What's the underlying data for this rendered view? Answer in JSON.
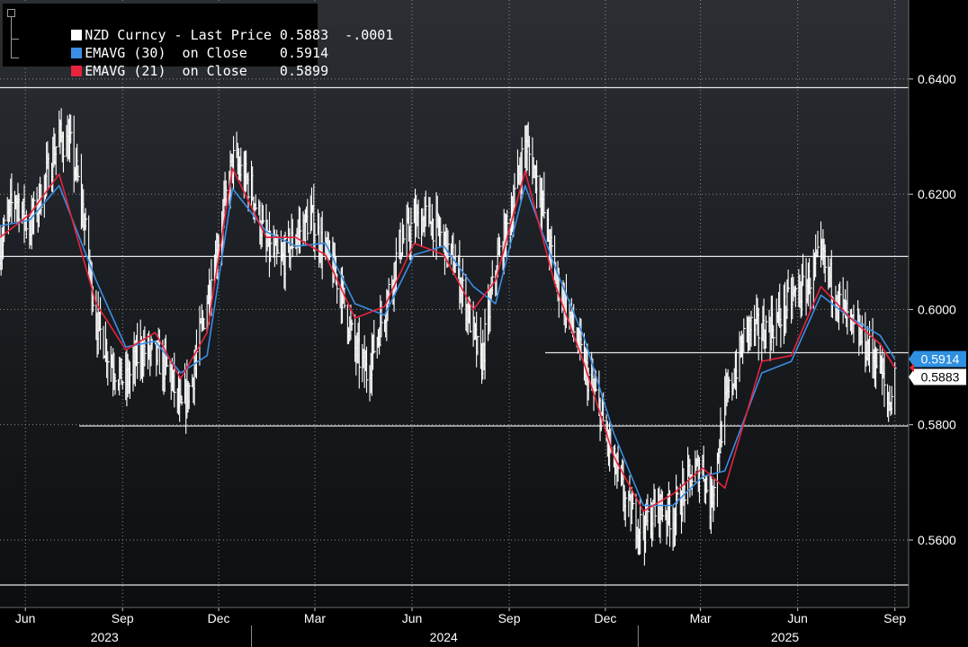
{
  "legend": {
    "items": [
      {
        "label": "NZD Curncy - Last Price 0.5883  -.0001",
        "color": "#ffffff"
      },
      {
        "label": "EMAVG (30)  on Close    0.5914",
        "color": "#3a8ee6"
      },
      {
        "label": "EMAVG (21)  on Close    0.5899",
        "color": "#e8233c"
      }
    ]
  },
  "price_labels": {
    "ema30": {
      "text": "0.5914",
      "value": 0.5914,
      "bg": "#2f8fe0",
      "fg": "#ffffff"
    },
    "last": {
      "text": "0.5883",
      "value": 0.5883,
      "bg": "#ffffff",
      "fg": "#000000"
    },
    "ema21_marker_color": "#e8233c"
  },
  "colors": {
    "price": "#ffffff",
    "ema30": "#3a8ee6",
    "ema21": "#e8233c",
    "grid": "#8a8a8a",
    "axis_text": "#ffffff",
    "level_lines": "#e6e6e6"
  },
  "chart_data": {
    "type": "line",
    "ylim": [
      0.5483,
      0.6537
    ],
    "y_ticks": [
      {
        "value": 0.64,
        "label": "0.6400"
      },
      {
        "value": 0.62,
        "label": "0.6200"
      },
      {
        "value": 0.6,
        "label": "0.6000"
      },
      {
        "value": 0.58,
        "label": "0.5800"
      },
      {
        "value": 0.56,
        "label": "0.5600"
      }
    ],
    "x_range": [
      "2023-05-08",
      "2025-09-14"
    ],
    "x_ticks": [
      {
        "date": "2023-06-01",
        "label": "Jun"
      },
      {
        "date": "2023-09-01",
        "label": "Sep"
      },
      {
        "date": "2023-12-01",
        "label": "Dec"
      },
      {
        "date": "2024-03-01",
        "label": "Mar"
      },
      {
        "date": "2024-06-01",
        "label": "Jun"
      },
      {
        "date": "2024-09-01",
        "label": "Sep"
      },
      {
        "date": "2024-12-01",
        "label": "Dec"
      },
      {
        "date": "2025-03-01",
        "label": "Mar"
      },
      {
        "date": "2025-06-01",
        "label": "Jun"
      },
      {
        "date": "2025-09-01",
        "label": "Sep"
      }
    ],
    "years": [
      {
        "label": "2023",
        "center": "2023-08-15"
      },
      {
        "label": "2024",
        "center": "2024-07-01"
      },
      {
        "label": "2025",
        "center": "2025-05-20"
      }
    ],
    "year_separators": [
      "2024-01-01",
      "2025-01-01"
    ],
    "horizontal_levels": [
      {
        "value": 0.6385,
        "from": "2023-05-08",
        "to": "2025-09-14"
      },
      {
        "value": 0.6092,
        "from": "2023-05-08",
        "to": "2025-09-14"
      },
      {
        "value": 0.5925,
        "from": "2024-10-05",
        "to": "2025-09-14"
      },
      {
        "value": 0.5798,
        "from": "2023-07-22",
        "to": "2025-09-14"
      },
      {
        "value": 0.5522,
        "from": "2023-05-08",
        "to": "2025-09-14"
      }
    ],
    "series": [
      {
        "name": "NZD Curncy",
        "role": "price",
        "x": [
          "2023-05-08",
          "2023-05-22",
          "2023-06-05",
          "2023-06-19",
          "2023-07-03",
          "2023-07-14",
          "2023-07-24",
          "2023-08-07",
          "2023-08-21",
          "2023-09-04",
          "2023-09-18",
          "2023-10-02",
          "2023-10-16",
          "2023-10-26",
          "2023-11-06",
          "2023-11-20",
          "2023-12-04",
          "2023-12-14",
          "2024-01-01",
          "2024-01-15",
          "2024-01-29",
          "2024-02-12",
          "2024-02-26",
          "2024-03-11",
          "2024-03-25",
          "2024-04-08",
          "2024-04-19",
          "2024-05-06",
          "2024-05-20",
          "2024-06-03",
          "2024-06-17",
          "2024-07-01",
          "2024-07-15",
          "2024-07-29",
          "2024-08-05",
          "2024-08-19",
          "2024-09-02",
          "2024-09-16",
          "2024-09-30",
          "2024-10-14",
          "2024-10-28",
          "2024-11-11",
          "2024-11-25",
          "2024-12-09",
          "2024-12-23",
          "2025-01-06",
          "2025-01-20",
          "2025-02-03",
          "2025-02-17",
          "2025-03-03",
          "2025-03-10",
          "2025-03-24",
          "2025-04-07",
          "2025-04-14",
          "2025-04-28",
          "2025-05-12",
          "2025-05-26",
          "2025-06-09",
          "2025-06-23",
          "2025-07-07",
          "2025-07-21",
          "2025-08-04",
          "2025-08-18",
          "2025-08-26",
          "2025-09-01"
        ],
        "values": [
          0.611,
          0.62,
          0.614,
          0.622,
          0.63,
          0.628,
          0.619,
          0.598,
          0.591,
          0.587,
          0.593,
          0.592,
          0.589,
          0.582,
          0.588,
          0.602,
          0.615,
          0.626,
          0.621,
          0.611,
          0.608,
          0.613,
          0.616,
          0.61,
          0.604,
          0.593,
          0.589,
          0.6,
          0.611,
          0.615,
          0.616,
          0.612,
          0.606,
          0.596,
          0.59,
          0.607,
          0.616,
          0.629,
          0.621,
          0.606,
          0.599,
          0.59,
          0.583,
          0.573,
          0.565,
          0.562,
          0.566,
          0.564,
          0.57,
          0.573,
          0.566,
          0.583,
          0.592,
          0.597,
          0.596,
          0.598,
          0.602,
          0.604,
          0.609,
          0.603,
          0.597,
          0.594,
          0.59,
          0.583,
          0.5883
        ]
      },
      {
        "name": "EMAVG (30)",
        "role": "ema30",
        "x": [
          "2023-05-08",
          "2023-06-05",
          "2023-07-03",
          "2023-08-07",
          "2023-09-04",
          "2023-10-02",
          "2023-10-26",
          "2023-11-20",
          "2023-12-14",
          "2024-01-15",
          "2024-02-12",
          "2024-03-11",
          "2024-04-08",
          "2024-05-06",
          "2024-06-03",
          "2024-07-01",
          "2024-07-29",
          "2024-08-19",
          "2024-09-16",
          "2024-10-14",
          "2024-11-11",
          "2024-12-09",
          "2025-01-06",
          "2025-02-03",
          "2025-03-03",
          "2025-03-24",
          "2025-04-28",
          "2025-05-26",
          "2025-06-23",
          "2025-07-21",
          "2025-08-18",
          "2025-09-01"
        ],
        "values": [
          0.6145,
          0.6155,
          0.6215,
          0.605,
          0.5935,
          0.5945,
          0.589,
          0.592,
          0.621,
          0.6135,
          0.611,
          0.6115,
          0.601,
          0.599,
          0.6095,
          0.611,
          0.604,
          0.601,
          0.6215,
          0.6075,
          0.595,
          0.5785,
          0.566,
          0.566,
          0.571,
          0.572,
          0.589,
          0.591,
          0.6025,
          0.5985,
          0.5955,
          0.5914
        ]
      },
      {
        "name": "EMAVG (21)",
        "role": "ema21",
        "x": [
          "2023-05-08",
          "2023-06-05",
          "2023-07-03",
          "2023-08-07",
          "2023-09-04",
          "2023-10-02",
          "2023-10-26",
          "2023-11-20",
          "2023-12-14",
          "2024-01-15",
          "2024-02-12",
          "2024-03-11",
          "2024-04-08",
          "2024-05-06",
          "2024-06-03",
          "2024-07-01",
          "2024-07-29",
          "2024-08-19",
          "2024-09-16",
          "2024-10-14",
          "2024-11-11",
          "2024-12-09",
          "2025-01-06",
          "2025-02-03",
          "2025-03-03",
          "2025-03-24",
          "2025-04-28",
          "2025-05-26",
          "2025-06-23",
          "2025-07-21",
          "2025-08-18",
          "2025-09-01"
        ],
        "values": [
          0.6125,
          0.6165,
          0.6235,
          0.601,
          0.593,
          0.596,
          0.588,
          0.596,
          0.6245,
          0.6125,
          0.6125,
          0.6095,
          0.5985,
          0.6005,
          0.6115,
          0.6095,
          0.6,
          0.605,
          0.624,
          0.6045,
          0.5905,
          0.5745,
          0.565,
          0.568,
          0.5725,
          0.569,
          0.591,
          0.592,
          0.604,
          0.5985,
          0.594,
          0.5899
        ]
      }
    ]
  }
}
